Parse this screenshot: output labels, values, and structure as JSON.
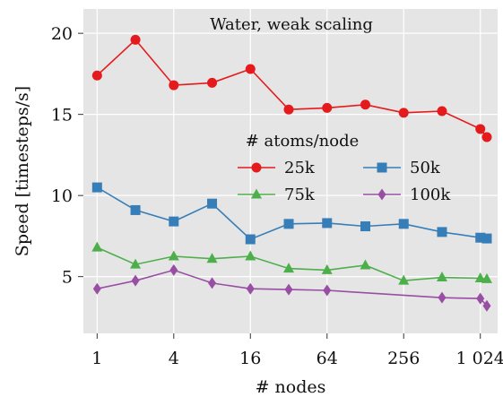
{
  "chart_data": {
    "type": "line",
    "title": "Water, weak scaling",
    "xlabel": "# nodes",
    "ylabel": "Speed [timesteps/s]",
    "x_scale": "log2",
    "x": [
      1,
      2,
      4,
      8,
      16,
      32,
      64,
      128,
      256,
      512,
      1024,
      1152
    ],
    "xticks": [
      1,
      4,
      16,
      64,
      256,
      1024
    ],
    "xtick_labels": [
      "1",
      "4",
      "16",
      "64",
      "256",
      "1 024"
    ],
    "xlim": [
      0.78,
      1400
    ],
    "ylim": [
      1.5,
      21.5
    ],
    "yticks": [
      5,
      10,
      15,
      20
    ],
    "ytick_labels": [
      "5",
      "10",
      "15",
      "20"
    ],
    "grid": true,
    "background_color": "#e5e5e5",
    "grid_color": "#ffffff",
    "legend": {
      "title": "# atoms/node",
      "placement": "center-right"
    },
    "series": [
      {
        "name": "25k",
        "color": "#e41a1c",
        "marker": "circle",
        "x": [
          1,
          2,
          4,
          8,
          16,
          32,
          64,
          128,
          256,
          512,
          1024,
          1152
        ],
        "values": [
          17.4,
          19.6,
          16.8,
          16.95,
          17.8,
          15.3,
          15.4,
          15.6,
          15.1,
          15.2,
          14.1,
          13.6
        ]
      },
      {
        "name": "50k",
        "color": "#377eb8",
        "marker": "square",
        "x": [
          1,
          2,
          4,
          8,
          16,
          32,
          64,
          128,
          256,
          512,
          1024,
          1152
        ],
        "values": [
          10.5,
          9.1,
          8.4,
          9.5,
          7.3,
          8.25,
          8.3,
          8.1,
          8.25,
          7.75,
          7.4,
          7.35
        ]
      },
      {
        "name": "75k",
        "color": "#4daf4a",
        "marker": "triangle",
        "x": [
          1,
          2,
          4,
          8,
          16,
          32,
          64,
          128,
          256,
          512,
          1024,
          1152
        ],
        "values": [
          6.8,
          5.75,
          6.25,
          6.1,
          6.25,
          5.5,
          5.4,
          5.7,
          4.75,
          4.95,
          4.9,
          4.85
        ]
      },
      {
        "name": "100k",
        "color": "#984ea3",
        "marker": "diamond",
        "x": [
          1,
          2,
          4,
          8,
          16,
          32,
          64,
          512,
          1024,
          1152
        ],
        "values": [
          4.25,
          4.75,
          5.4,
          4.6,
          4.25,
          4.2,
          4.15,
          3.7,
          3.65,
          3.2
        ]
      }
    ]
  }
}
